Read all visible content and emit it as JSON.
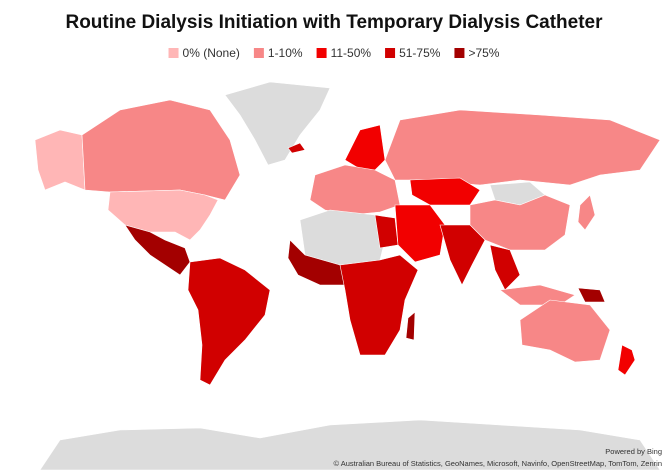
{
  "title": "Routine Dialysis Initiation with Temporary Dialysis Catheter",
  "legend": [
    {
      "label": "0% (None)",
      "color": "#ffb6b6"
    },
    {
      "label": "1-10%",
      "color": "#f78787"
    },
    {
      "label": "11-50%",
      "color": "#f20000"
    },
    {
      "label": "51-75%",
      "color": "#d10000"
    },
    {
      "label": ">75%",
      "color": "#a30000"
    }
  ],
  "attribution": {
    "powered_by": "Powered by Bing",
    "credits": "© Australian Bureau of Statistics, GeoNames, Microsoft, Navinfo, OpenStreetMap, TomTom, Zenrin"
  }
}
